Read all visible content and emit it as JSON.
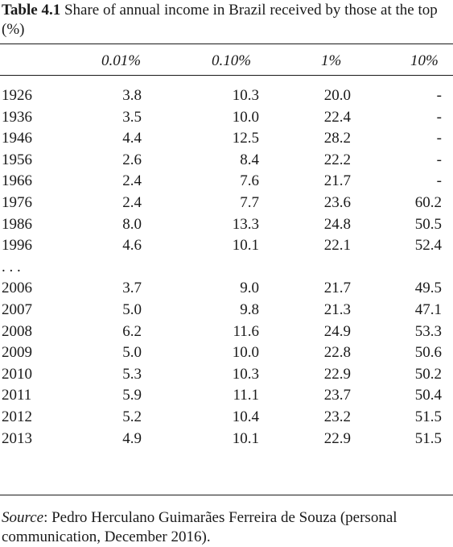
{
  "caption": {
    "label": "Table 4.1",
    "text": "Share of annual income in Brazil received by those at the top (%)"
  },
  "columns": [
    "0.01%",
    "0.10%",
    "1%",
    "10%"
  ],
  "rows": [
    {
      "year": "1926",
      "c1": "3.8",
      "c2": "10.3",
      "c3": "20.0",
      "c4": "-"
    },
    {
      "year": "1936",
      "c1": "3.5",
      "c2": "10.0",
      "c3": "22.4",
      "c4": "-"
    },
    {
      "year": "1946",
      "c1": "4.4",
      "c2": "12.5",
      "c3": "28.2",
      "c4": "-"
    },
    {
      "year": "1956",
      "c1": "2.6",
      "c2": "8.4",
      "c3": "22.2",
      "c4": "-"
    },
    {
      "year": "1966",
      "c1": "2.4",
      "c2": "7.6",
      "c3": "21.7",
      "c4": "-"
    },
    {
      "year": "1976",
      "c1": "2.4",
      "c2": "7.7",
      "c3": "23.6",
      "c4": "60.2"
    },
    {
      "year": "1986",
      "c1": "8.0",
      "c2": "13.3",
      "c3": "24.8",
      "c4": "50.5"
    },
    {
      "year": "1996",
      "c1": "4.6",
      "c2": "10.1",
      "c3": "22.1",
      "c4": "52.4"
    },
    {
      "year": ". . .",
      "c1": "",
      "c2": "",
      "c3": "",
      "c4": ""
    },
    {
      "year": "2006",
      "c1": "3.7",
      "c2": "9.0",
      "c3": "21.7",
      "c4": "49.5"
    },
    {
      "year": "2007",
      "c1": "5.0",
      "c2": "9.8",
      "c3": "21.3",
      "c4": "47.1"
    },
    {
      "year": "2008",
      "c1": "6.2",
      "c2": "11.6",
      "c3": "24.9",
      "c4": "53.3"
    },
    {
      "year": "2009",
      "c1": "5.0",
      "c2": "10.0",
      "c3": "22.8",
      "c4": "50.6"
    },
    {
      "year": "2010",
      "c1": "5.3",
      "c2": "10.3",
      "c3": "22.9",
      "c4": "50.2"
    },
    {
      "year": "2011",
      "c1": "5.9",
      "c2": "11.1",
      "c3": "23.7",
      "c4": "50.4"
    },
    {
      "year": "2012",
      "c1": "5.2",
      "c2": "10.4",
      "c3": "23.2",
      "c4": "51.5"
    },
    {
      "year": "2013",
      "c1": "4.9",
      "c2": "10.1",
      "c3": "22.9",
      "c4": "51.5"
    }
  ],
  "source": {
    "label": "Source",
    "text": ": Pedro Herculano Guimarães Ferreira de Souza (personal communication, December 2016)."
  }
}
